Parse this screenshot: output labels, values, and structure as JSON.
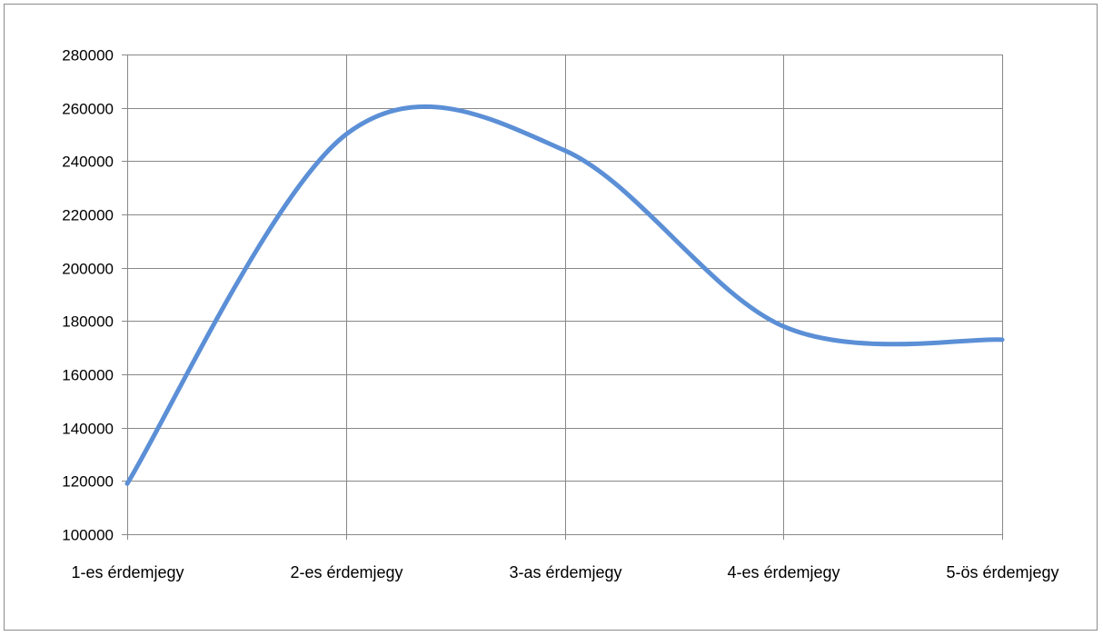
{
  "chart_data": {
    "type": "line",
    "title": "",
    "xlabel": "",
    "ylabel": "",
    "categories": [
      "1-es érdemjegy",
      "2-es érdemjegy",
      "3-as érdemjegy",
      "4-es érdemjegy",
      "5-ös érdemjegy"
    ],
    "series": [
      {
        "values": [
          119000,
          250000,
          244000,
          178000,
          173000
        ]
      }
    ],
    "ylim": [
      100000,
      280000
    ],
    "yticks": [
      "100000",
      "120000",
      "140000",
      "160000",
      "180000",
      "200000",
      "220000",
      "240000",
      "260000",
      "280000"
    ],
    "grid": true,
    "smooth": true,
    "line_color": "#5b8fd6",
    "grid_color": "#888888",
    "legend": "none"
  }
}
